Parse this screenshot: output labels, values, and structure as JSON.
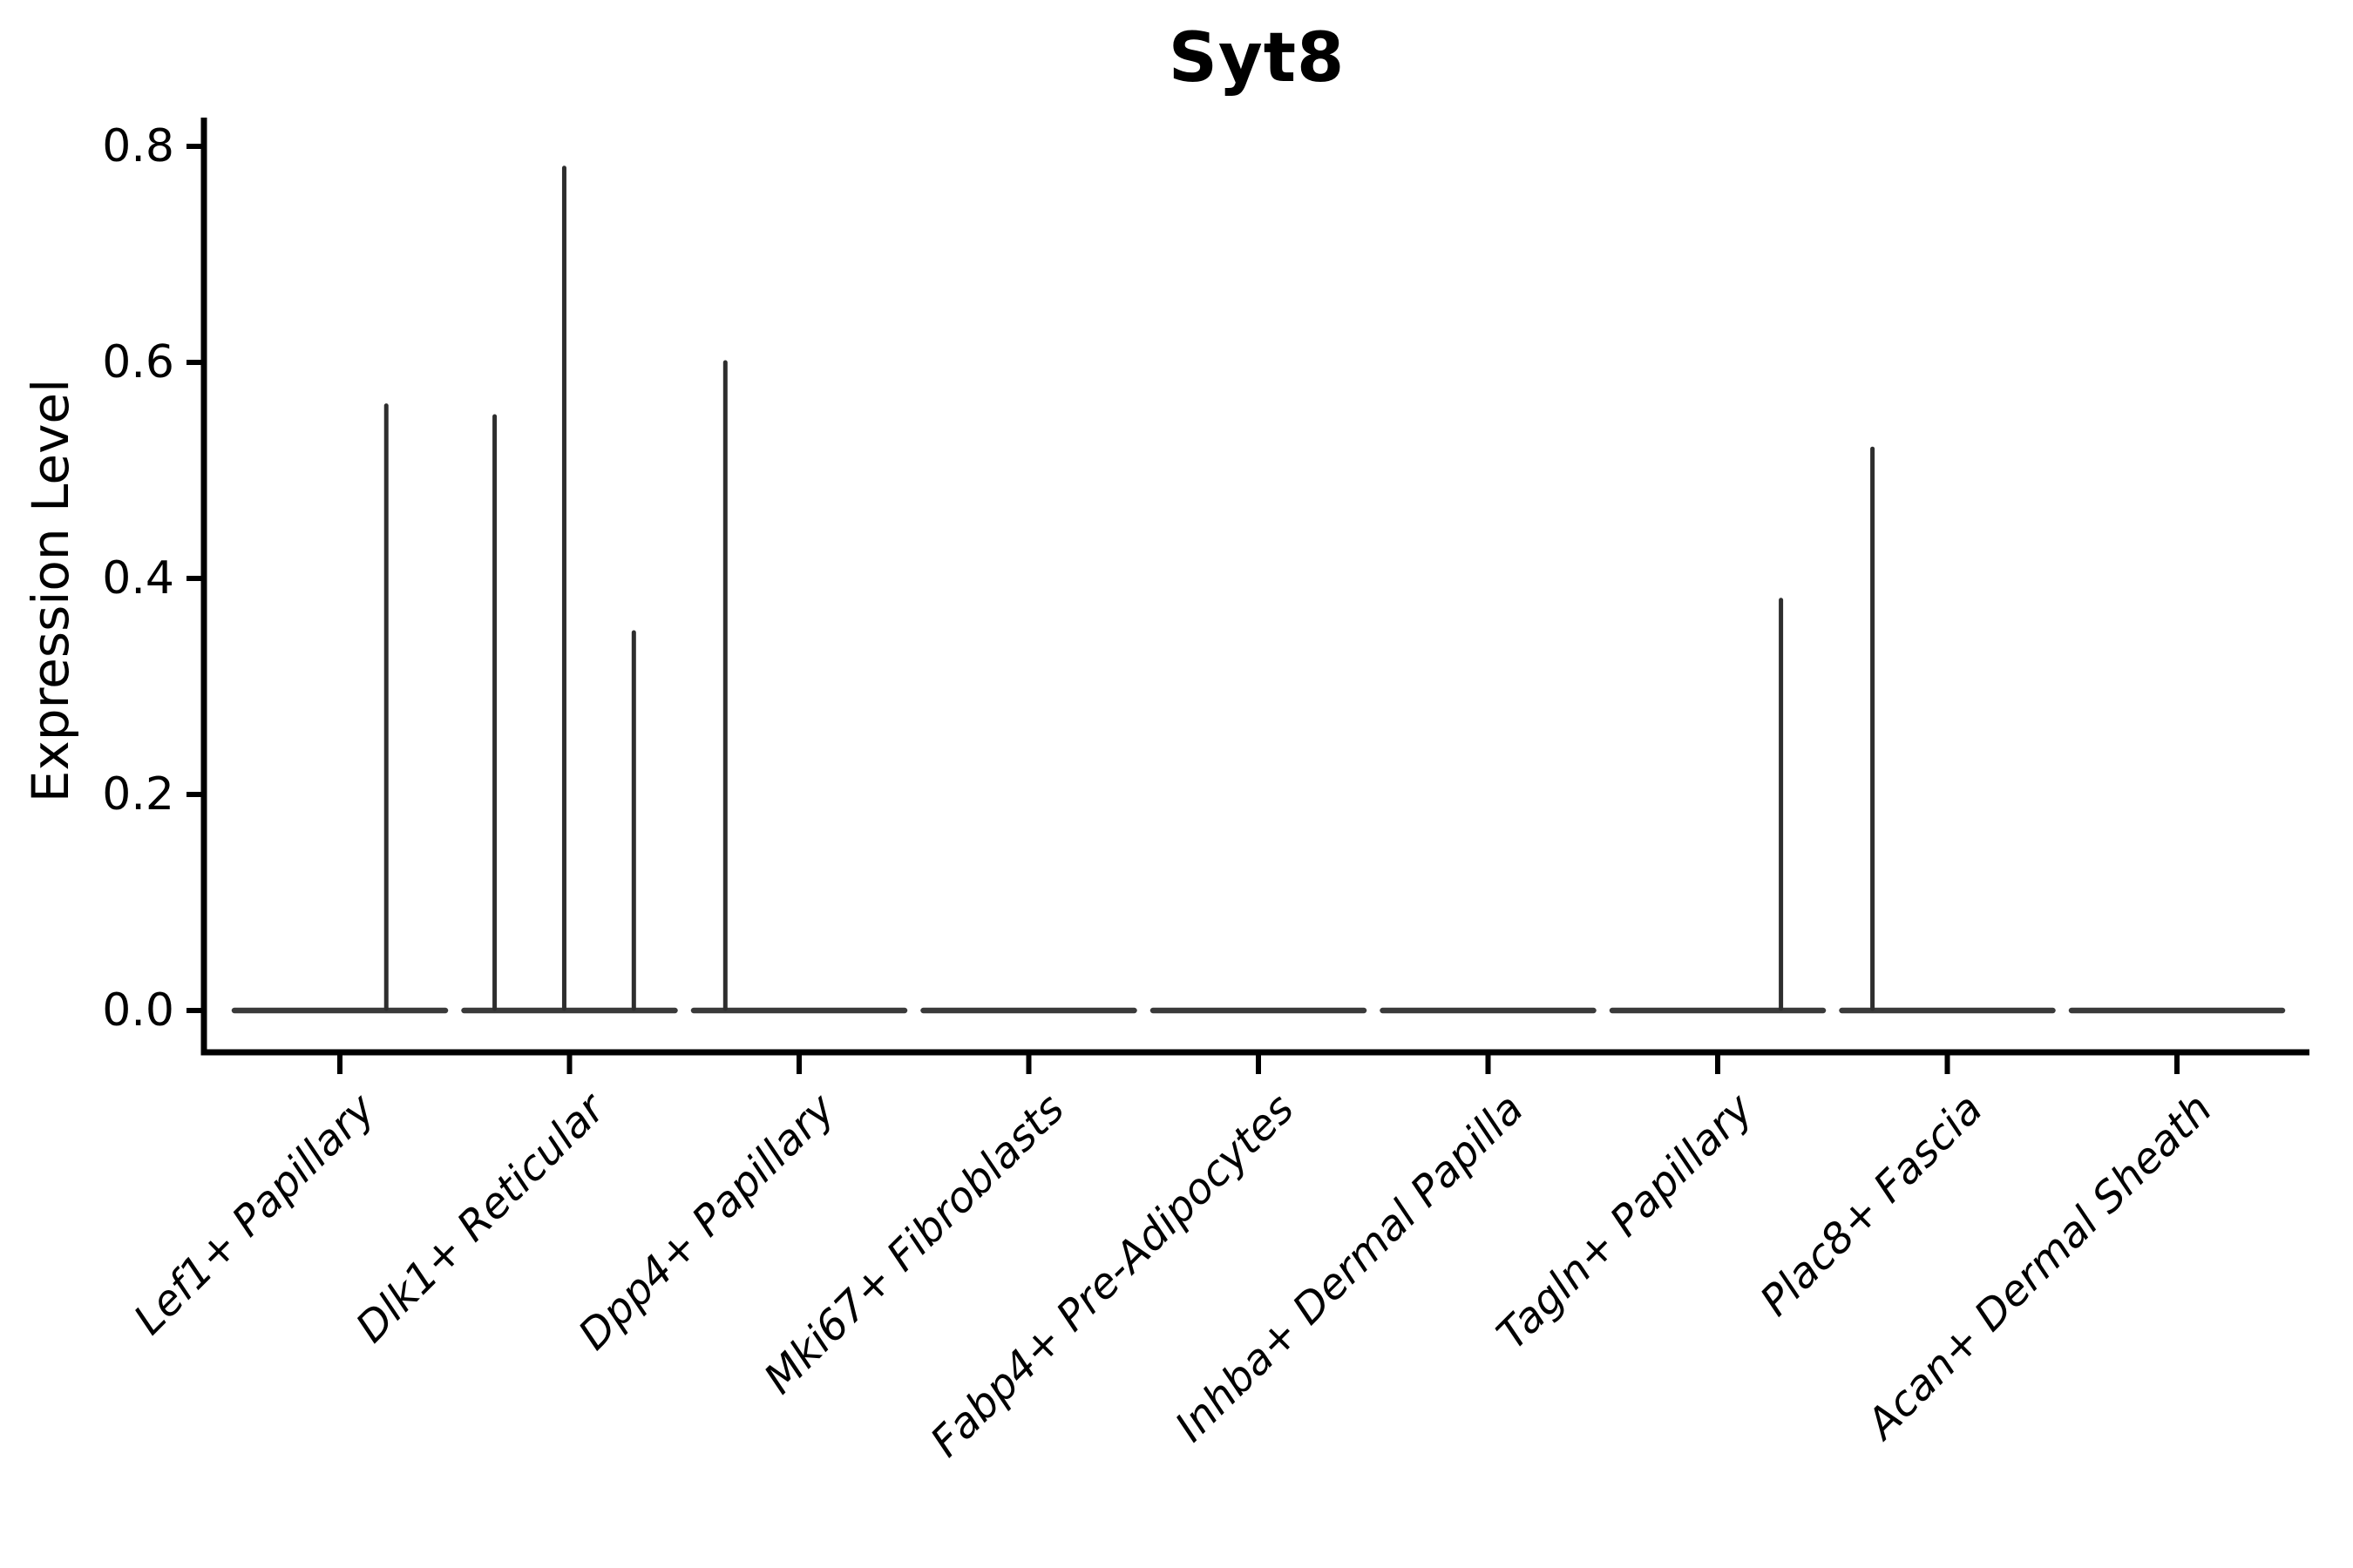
{
  "title": "Syt8",
  "chart_data": {
    "type": "violin",
    "title": "Syt8",
    "xlabel": "",
    "ylabel": "Expression Level",
    "ylim": [
      -0.04,
      0.83
    ],
    "yticks": [
      "0.0",
      "0.2",
      "0.4",
      "0.6",
      "0.8"
    ],
    "ytick_values": [
      0.0,
      0.2,
      0.4,
      0.6,
      0.8
    ],
    "grid": false,
    "legend": null,
    "categories": [
      "Lef1+ Papillary",
      "Dlk1+ Reticular",
      "Dpp4+ Papillary",
      "Mki67+ Fibroblasts",
      "Fabp4+ Pre-Adipocytes",
      "Inhba+ Dermal Papilla",
      "Tagln+ Papillary",
      "Plac8+ Fascia",
      "Acan+ Dermal Sheath"
    ],
    "violins": [
      {
        "category": "Lef1+ Papillary",
        "baseline_value": 0.0,
        "max_expression": 0.56,
        "spikes": [
          {
            "value": 0.56,
            "offset": 0.44
          }
        ]
      },
      {
        "category": "Dlk1+ Reticular",
        "baseline_value": 0.0,
        "max_expression": 0.78,
        "spikes": [
          {
            "value": 0.55,
            "offset": -0.71
          },
          {
            "value": 0.78,
            "offset": -0.05
          },
          {
            "value": 0.35,
            "offset": 0.61
          }
        ]
      },
      {
        "category": "Dpp4+ Papillary",
        "baseline_value": 0.0,
        "max_expression": 0.6,
        "spikes": [
          {
            "value": 0.6,
            "offset": -0.7
          }
        ]
      },
      {
        "category": "Mki67+ Fibroblasts",
        "baseline_value": 0.0,
        "max_expression": 0.0,
        "spikes": []
      },
      {
        "category": "Fabp4+ Pre-Adipocytes",
        "baseline_value": 0.0,
        "max_expression": 0.0,
        "spikes": []
      },
      {
        "category": "Inhba+ Dermal Papilla",
        "baseline_value": 0.0,
        "max_expression": 0.0,
        "spikes": []
      },
      {
        "category": "Tagln+ Papillary",
        "baseline_value": 0.0,
        "max_expression": 0.38,
        "spikes": [
          {
            "value": 0.38,
            "offset": 0.6
          }
        ]
      },
      {
        "category": "Plac8+ Fascia",
        "baseline_value": 0.0,
        "max_expression": 0.52,
        "spikes": [
          {
            "value": 0.52,
            "offset": -0.71
          }
        ]
      },
      {
        "category": "Acan+ Dermal Sheath",
        "baseline_value": 0.0,
        "max_expression": 0.0,
        "spikes": []
      }
    ],
    "colors": {
      "axis": "#000000",
      "violin_stroke": "#3a3a3a",
      "spike_stroke": "#2e2e2e",
      "background": "#ffffff"
    }
  }
}
